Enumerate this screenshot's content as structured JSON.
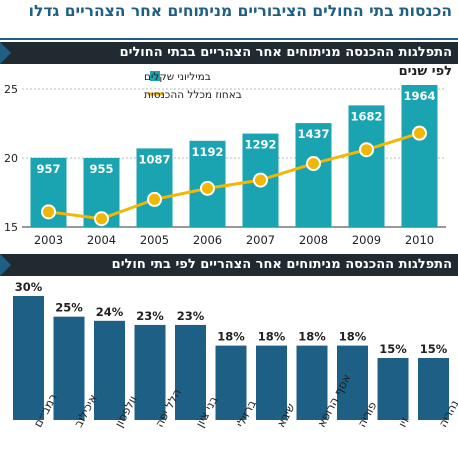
{
  "headline": "הכנסות בתי החולים הציבוריים מניתוחים אחר הצהריים גדלו",
  "section1": {
    "title": "התפלגות ההכנסה מניתוחים אחר הצהריים בבתי החולים",
    "subtitle": "לפי שנים"
  },
  "section2": {
    "title": "התפלגות ההכנסה מניתוחים אחר הצהריים לפי בתי חולים"
  },
  "colors": {
    "teal": "#1aa3b0",
    "gold": "#f2b705",
    "navy": "#1e5f86",
    "dark": "#212a30"
  },
  "chart_data": [
    {
      "type": "bar",
      "categories": [
        "2003",
        "2004",
        "2005",
        "2006",
        "2007",
        "2008",
        "2009",
        "2010"
      ],
      "series": [
        {
          "name": "במיליוני שקלים",
          "type": "bar",
          "values": [
            957,
            955,
            1087,
            1192,
            1292,
            1437,
            1682,
            1964
          ]
        },
        {
          "name": "באחוז מכלל ההכנסות",
          "type": "line",
          "values": [
            16.1,
            15.6,
            17.0,
            17.8,
            18.4,
            19.6,
            20.6,
            21.8
          ]
        }
      ],
      "y_ticks": [
        "25",
        "20",
        "15"
      ],
      "ylim": [
        15,
        25
      ],
      "legend": "top-right"
    },
    {
      "type": "bar",
      "categories": [
        "רמב״ם",
        "איכילוב",
        "וולפסון",
        "הלל יפה",
        "בני ציון",
        "ברזילי",
        "שיבא",
        "אסף הרופא",
        "פוריה",
        "זיו",
        "נהריה"
      ],
      "values": [
        30,
        25,
        24,
        23,
        23,
        18,
        18,
        18,
        18,
        15,
        15
      ],
      "labels": [
        "30%",
        "25%",
        "24%",
        "23%",
        "23%",
        "18%",
        "18%",
        "18%",
        "18%",
        "15%",
        "15%"
      ]
    }
  ]
}
